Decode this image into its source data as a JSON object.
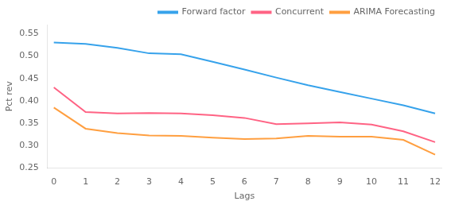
{
  "chart_data": {
    "type": "line",
    "xlabel": "Lags",
    "ylabel": "Pct rev",
    "x": [
      0,
      1,
      2,
      3,
      4,
      5,
      6,
      7,
      8,
      9,
      10,
      11,
      12
    ],
    "series": [
      {
        "name": "Forward factor",
        "values": [
          0.53,
          0.527,
          0.518,
          0.506,
          0.504,
          0.487,
          0.47,
          0.452,
          0.435,
          0.42,
          0.405,
          0.39,
          0.372
        ]
      },
      {
        "name": "Concurrent",
        "values": [
          0.43,
          0.375,
          0.372,
          0.373,
          0.372,
          0.368,
          0.362,
          0.348,
          0.35,
          0.352,
          0.347,
          0.332,
          0.308
        ]
      },
      {
        "name": "ARIMA Forecasting",
        "values": [
          0.385,
          0.338,
          0.328,
          0.323,
          0.322,
          0.318,
          0.315,
          0.316,
          0.322,
          0.32,
          0.32,
          0.313,
          0.28
        ]
      }
    ],
    "xlim": [
      -0.2,
      12.2
    ],
    "xticks": [
      0,
      1,
      2,
      3,
      4,
      5,
      6,
      7,
      8,
      9,
      10,
      11,
      12
    ],
    "ylim": [
      0.25,
      0.57
    ],
    "yticks": [
      0.25,
      {
        "value": 0.3,
        "label": "0.30"
      },
      0.35,
      {
        "value": 0.4,
        "label": "0.40"
      },
      0.45,
      {
        "value": 0.5,
        "label": "0.50"
      },
      0.55
    ],
    "grid": false,
    "legend": "upper right"
  }
}
